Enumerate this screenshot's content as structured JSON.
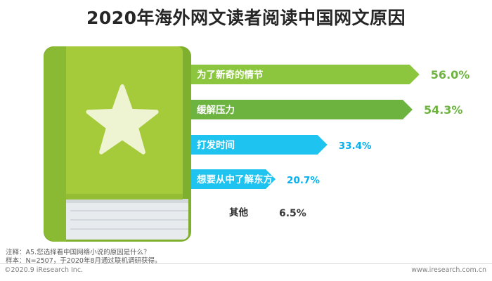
{
  "page": {
    "title": "2020年海外网文读者阅读中国网文原因"
  },
  "chart_data": {
    "type": "bar",
    "orientation": "horizontal",
    "title": "2020年海外网文读者阅读中国网文原因",
    "categories": [
      "为了新奇的情节",
      "缓解压力",
      "打发时间",
      "想要从中了解东方文化",
      "其他"
    ],
    "values": [
      56.0,
      54.3,
      33.4,
      20.7,
      6.5
    ],
    "value_labels": [
      "56.0%",
      "54.3%",
      "33.4%",
      "20.7%",
      "6.5%"
    ],
    "unit": "%",
    "colors": [
      "#8cc63f",
      "#6cb33f",
      "#1fc3f0",
      "#1fc3f0",
      "none"
    ],
    "value_label_colors": [
      "#6cb33f",
      "#6cb33f",
      "#00b0f0",
      "#00b0f0",
      "#3a3a3a"
    ],
    "bar_shape": "arrow",
    "grid": false,
    "legend": "none"
  },
  "notes": {
    "question": "注释：A5.您选择看中国网络小说的原因是什么？",
    "sample": "样本：N=2507，于2020年8月通过联机调研获得。"
  },
  "footer": {
    "copyright": "©2020.9 iResearch Inc.",
    "website": "www.iresearch.com.cn"
  },
  "colors": {
    "book_cover": "#a6cb3a",
    "book_spine": "#7faf2e",
    "book_pages": "#e8ebee",
    "star": "#eef4d2"
  },
  "icons": {
    "book": "book-icon",
    "star": "star-icon"
  }
}
